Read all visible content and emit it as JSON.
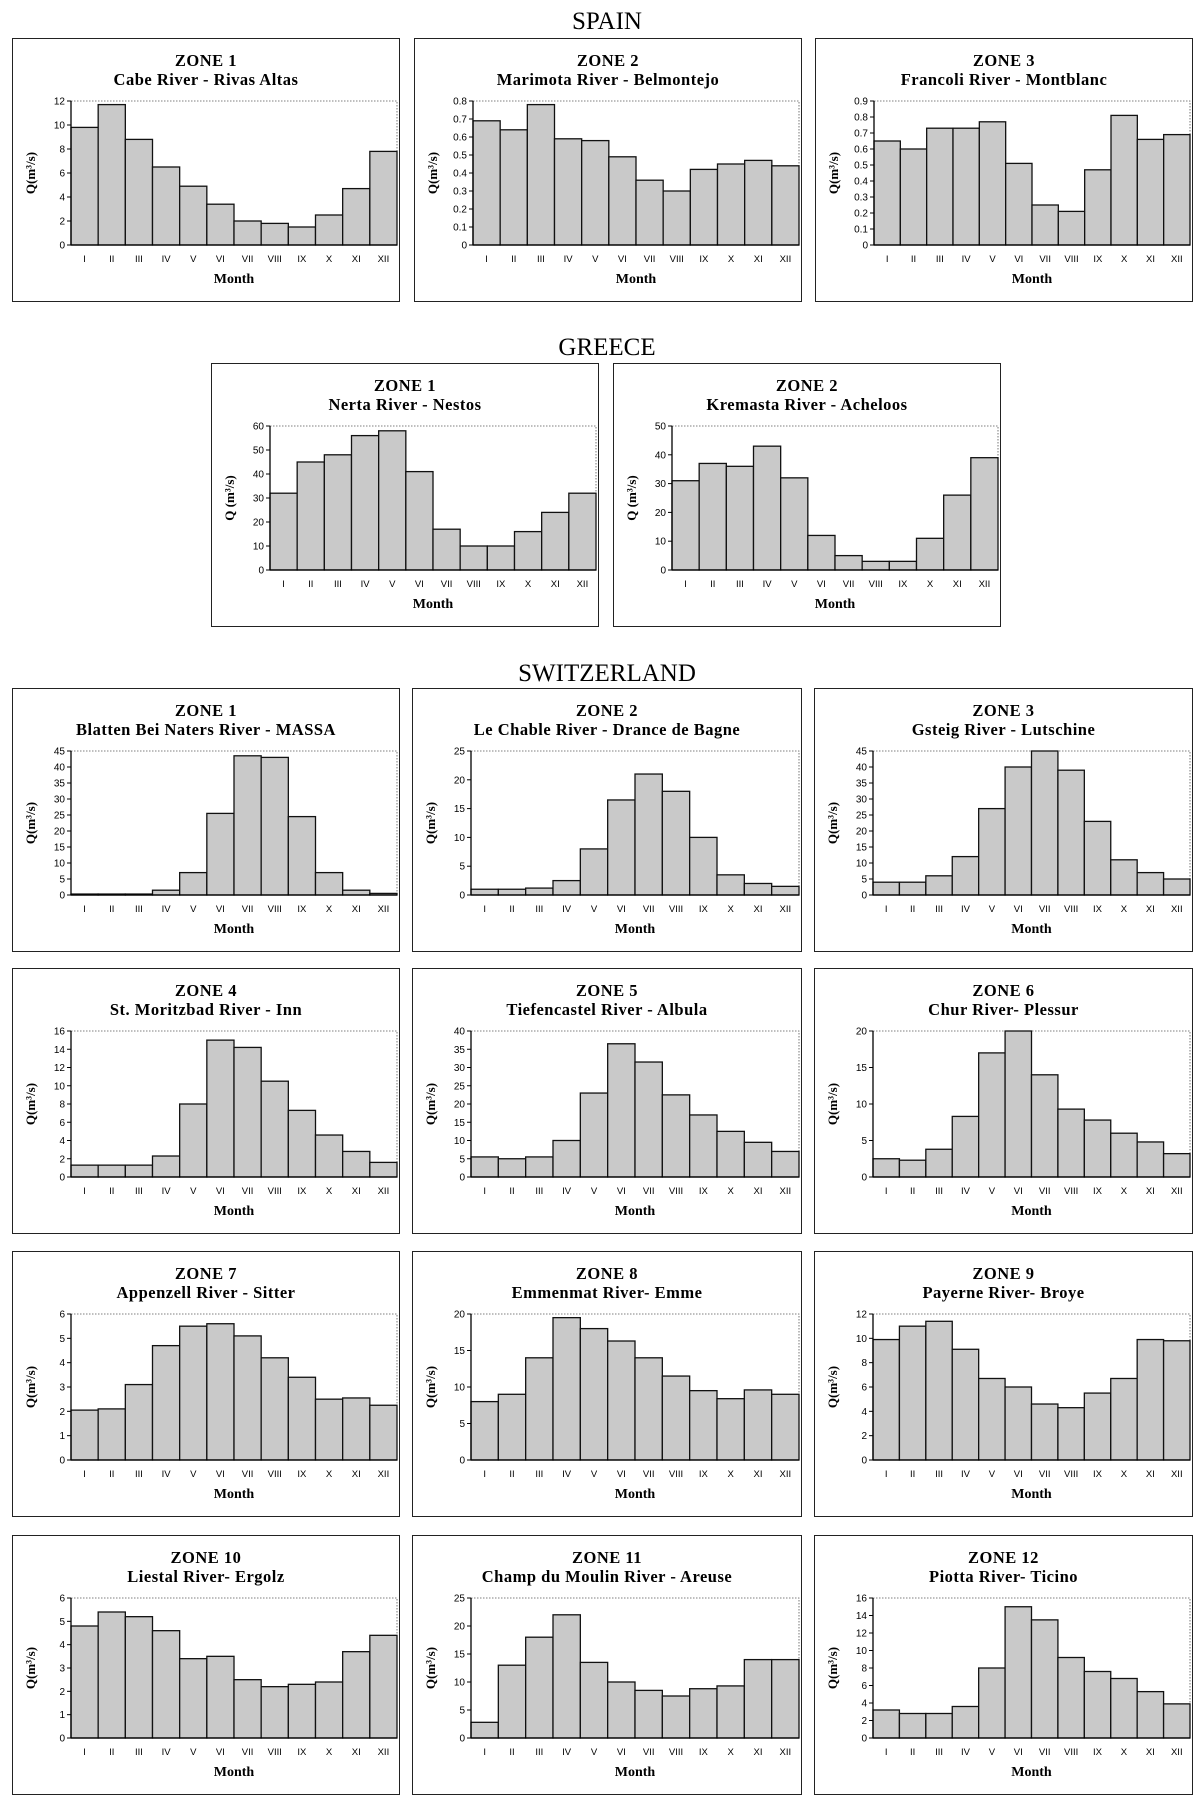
{
  "countries": [
    "SPAIN",
    "GREECE",
    "SWITZERLAND"
  ],
  "colors": {
    "bar_fill": "#c9c9c9",
    "bar_stroke": "#111111",
    "frame": "#222222"
  },
  "chart_data": [
    {
      "type": "bar",
      "country": "SPAIN",
      "title": "ZONE 1",
      "subtitle": "Cabe River - Rivas Altas",
      "xlabel": "Month",
      "ylabel": "Q(m³/s)",
      "ylim": [
        0,
        12
      ],
      "yticks": [
        0,
        2,
        4,
        6,
        8,
        10,
        12
      ],
      "categories": [
        "I",
        "II",
        "III",
        "IV",
        "V",
        "VI",
        "VII",
        "VIII",
        "IX",
        "X",
        "XI",
        "XII"
      ],
      "values": [
        9.8,
        11.7,
        8.8,
        6.5,
        4.9,
        3.4,
        2.0,
        1.8,
        1.5,
        2.5,
        4.7,
        7.8
      ]
    },
    {
      "type": "bar",
      "country": "SPAIN",
      "title": "ZONE 2",
      "subtitle": "Marimota River - Belmontejo",
      "xlabel": "Month",
      "ylabel": "Q(m³/s)",
      "ylim": [
        0,
        0.8
      ],
      "yticks": [
        0,
        0.1,
        0.2,
        0.3,
        0.4,
        0.5,
        0.6,
        0.7,
        0.8
      ],
      "categories": [
        "I",
        "II",
        "III",
        "IV",
        "V",
        "VI",
        "VII",
        "VIII",
        "IX",
        "X",
        "XI",
        "XII"
      ],
      "values": [
        0.69,
        0.64,
        0.78,
        0.59,
        0.58,
        0.49,
        0.36,
        0.3,
        0.42,
        0.45,
        0.47,
        0.44
      ]
    },
    {
      "type": "bar",
      "country": "SPAIN",
      "title": "ZONE 3",
      "subtitle": "Francoli River - Montblanc",
      "xlabel": "Month",
      "ylabel": "Q(m³/s)",
      "ylim": [
        0,
        0.9
      ],
      "yticks": [
        0,
        0.1,
        0.2,
        0.3,
        0.4,
        0.5,
        0.6,
        0.7,
        0.8,
        0.9
      ],
      "categories": [
        "I",
        "II",
        "III",
        "IV",
        "V",
        "VI",
        "VII",
        "VIII",
        "IX",
        "X",
        "XI",
        "XII"
      ],
      "values": [
        0.65,
        0.6,
        0.73,
        0.73,
        0.77,
        0.51,
        0.25,
        0.21,
        0.47,
        0.81,
        0.66,
        0.69
      ]
    },
    {
      "type": "bar",
      "country": "GREECE",
      "title": "ZONE 1",
      "subtitle": "Nerta River - Nestos",
      "xlabel": "Month",
      "ylabel": "Q (m³/s)",
      "ylim": [
        0,
        60
      ],
      "yticks": [
        0,
        10,
        20,
        30,
        40,
        50,
        60
      ],
      "categories": [
        "I",
        "II",
        "III",
        "IV",
        "V",
        "VI",
        "VII",
        "VIII",
        "IX",
        "X",
        "XI",
        "XII"
      ],
      "values": [
        32,
        45,
        48,
        56,
        58,
        41,
        17,
        10,
        10,
        16,
        24,
        32
      ]
    },
    {
      "type": "bar",
      "country": "GREECE",
      "title": "ZONE 2",
      "subtitle": "Kremasta River - Acheloos",
      "xlabel": "Month",
      "ylabel": "Q (m³/s)",
      "ylim": [
        0,
        50
      ],
      "yticks": [
        0,
        10,
        20,
        30,
        40,
        50
      ],
      "categories": [
        "I",
        "II",
        "III",
        "IV",
        "V",
        "VI",
        "VII",
        "VIII",
        "IX",
        "X",
        "XI",
        "XII"
      ],
      "values": [
        31,
        37,
        36,
        43,
        32,
        12,
        5,
        3,
        3,
        11,
        26,
        39
      ]
    },
    {
      "type": "bar",
      "country": "SWITZERLAND",
      "title": "ZONE 1",
      "subtitle": "Blatten Bei Naters River - MASSA",
      "xlabel": "Month",
      "ylabel": "Q(m³/s)",
      "ylim": [
        0,
        45
      ],
      "yticks": [
        0,
        5,
        10,
        15,
        20,
        25,
        30,
        35,
        40,
        45
      ],
      "categories": [
        "I",
        "II",
        "III",
        "IV",
        "V",
        "VI",
        "VII",
        "VIII",
        "IX",
        "X",
        "XI",
        "XII"
      ],
      "values": [
        0.3,
        0.3,
        0.3,
        1.5,
        7,
        25.5,
        43.5,
        43,
        24.5,
        7,
        1.5,
        0.5
      ]
    },
    {
      "type": "bar",
      "country": "SWITZERLAND",
      "title": "ZONE 2",
      "subtitle": "Le Chable River - Drance de Bagne",
      "xlabel": "Month",
      "ylabel": "Q(m³/s)",
      "ylim": [
        0,
        25
      ],
      "yticks": [
        0,
        5,
        10,
        15,
        20,
        25
      ],
      "categories": [
        "I",
        "II",
        "III",
        "IV",
        "V",
        "VI",
        "VII",
        "VIII",
        "IX",
        "X",
        "XI",
        "XII"
      ],
      "values": [
        1,
        1,
        1.2,
        2.5,
        8,
        16.5,
        21,
        18,
        10,
        3.5,
        2,
        1.5
      ]
    },
    {
      "type": "bar",
      "country": "SWITZERLAND",
      "title": "ZONE 3",
      "subtitle": "Gsteig River - Lutschine",
      "xlabel": "Month",
      "ylabel": "Q(m³/s)",
      "ylim": [
        0,
        45
      ],
      "yticks": [
        0,
        5,
        10,
        15,
        20,
        25,
        30,
        35,
        40,
        45
      ],
      "categories": [
        "I",
        "II",
        "III",
        "IV",
        "V",
        "VI",
        "VII",
        "VIII",
        "IX",
        "X",
        "XI",
        "XII"
      ],
      "values": [
        4,
        4,
        6,
        12,
        27,
        40,
        45,
        39,
        23,
        11,
        7,
        5
      ]
    },
    {
      "type": "bar",
      "country": "SWITZERLAND",
      "title": "ZONE 4",
      "subtitle": "St. Moritzbad River - Inn",
      "xlabel": "Month",
      "ylabel": "Q(m³/s)",
      "ylim": [
        0,
        16
      ],
      "yticks": [
        0,
        2,
        4,
        6,
        8,
        10,
        12,
        14,
        16
      ],
      "categories": [
        "I",
        "II",
        "III",
        "IV",
        "V",
        "VI",
        "VII",
        "VIII",
        "IX",
        "X",
        "XI",
        "XII"
      ],
      "values": [
        1.3,
        1.3,
        1.3,
        2.3,
        8,
        15,
        14.2,
        10.5,
        7.3,
        4.6,
        2.8,
        1.6
      ]
    },
    {
      "type": "bar",
      "country": "SWITZERLAND",
      "title": "ZONE 5",
      "subtitle": "Tiefencastel River - Albula",
      "xlabel": "Month",
      "ylabel": "Q(m³/s)",
      "ylim": [
        0,
        40
      ],
      "yticks": [
        0,
        5,
        10,
        15,
        20,
        25,
        30,
        35,
        40
      ],
      "categories": [
        "I",
        "II",
        "III",
        "IV",
        "V",
        "VI",
        "VII",
        "VIII",
        "IX",
        "X",
        "XI",
        "XII"
      ],
      "values": [
        5.5,
        5,
        5.5,
        10,
        23,
        36.5,
        31.5,
        22.5,
        17,
        12.5,
        9.5,
        7
      ]
    },
    {
      "type": "bar",
      "country": "SWITZERLAND",
      "title": "ZONE 6",
      "subtitle": "Chur River- Plessur",
      "xlabel": "Month",
      "ylabel": "Q(m³/s)",
      "ylim": [
        0,
        20
      ],
      "yticks": [
        0,
        5,
        10,
        15,
        20
      ],
      "categories": [
        "I",
        "II",
        "III",
        "IV",
        "V",
        "VI",
        "VII",
        "VIII",
        "IX",
        "X",
        "XI",
        "XII"
      ],
      "values": [
        2.5,
        2.3,
        3.8,
        8.3,
        17,
        20,
        14,
        9.3,
        7.8,
        6,
        4.8,
        3.2
      ]
    },
    {
      "type": "bar",
      "country": "SWITZERLAND",
      "title": "ZONE 7",
      "subtitle": "Appenzell River - Sitter",
      "xlabel": "Month",
      "ylabel": "Q(m³/s)",
      "ylim": [
        0,
        6
      ],
      "yticks": [
        0,
        1,
        2,
        3,
        4,
        5,
        6
      ],
      "categories": [
        "I",
        "II",
        "III",
        "IV",
        "V",
        "VI",
        "VII",
        "VIII",
        "IX",
        "X",
        "XI",
        "XII"
      ],
      "values": [
        2.05,
        2.1,
        3.1,
        4.7,
        5.5,
        5.6,
        5.1,
        4.2,
        3.4,
        2.5,
        2.55,
        2.25
      ]
    },
    {
      "type": "bar",
      "country": "SWITZERLAND",
      "title": "ZONE 8",
      "subtitle": "Emmenmat River- Emme",
      "xlabel": "Month",
      "ylabel": "Q(m³/s)",
      "ylim": [
        0,
        20
      ],
      "yticks": [
        0,
        5,
        10,
        15,
        20
      ],
      "categories": [
        "I",
        "II",
        "III",
        "IV",
        "V",
        "VI",
        "VII",
        "VIII",
        "IX",
        "X",
        "XI",
        "XII"
      ],
      "values": [
        8,
        9,
        14,
        19.5,
        18,
        16.3,
        14,
        11.5,
        9.5,
        8.4,
        9.6,
        9
      ]
    },
    {
      "type": "bar",
      "country": "SWITZERLAND",
      "title": "ZONE 9",
      "subtitle": "Payerne River- Broye",
      "xlabel": "Month",
      "ylabel": "Q(m³/s)",
      "ylim": [
        0,
        12
      ],
      "yticks": [
        0,
        2,
        4,
        6,
        8,
        10,
        12
      ],
      "categories": [
        "I",
        "II",
        "III",
        "IV",
        "V",
        "VI",
        "VII",
        "VIII",
        "IX",
        "X",
        "XI",
        "XII"
      ],
      "values": [
        9.9,
        11,
        11.4,
        9.1,
        6.7,
        6,
        4.6,
        4.3,
        5.5,
        6.7,
        9.9,
        9.8
      ]
    },
    {
      "type": "bar",
      "country": "SWITZERLAND",
      "title": "ZONE 10",
      "subtitle": "Liestal River- Ergolz",
      "xlabel": "Month",
      "ylabel": "Q(m³/s)",
      "ylim": [
        0,
        6
      ],
      "yticks": [
        0,
        1,
        2,
        3,
        4,
        5,
        6
      ],
      "categories": [
        "I",
        "II",
        "III",
        "IV",
        "V",
        "VI",
        "VII",
        "VIII",
        "IX",
        "X",
        "XI",
        "XII"
      ],
      "values": [
        4.8,
        5.4,
        5.2,
        4.6,
        3.4,
        3.5,
        2.5,
        2.2,
        2.3,
        2.4,
        3.7,
        4.4
      ]
    },
    {
      "type": "bar",
      "country": "SWITZERLAND",
      "title": "ZONE 11",
      "subtitle": "Champ du Moulin River - Areuse",
      "xlabel": "Month",
      "ylabel": "Q(m³/s)",
      "ylim": [
        0,
        25
      ],
      "yticks": [
        0,
        5,
        10,
        15,
        20,
        25
      ],
      "categories": [
        "I",
        "II",
        "III",
        "IV",
        "V",
        "VI",
        "VII",
        "VIII",
        "IX",
        "X",
        "XI",
        "XII"
      ],
      "values": [
        2.8,
        13,
        18,
        22,
        13.5,
        10,
        8.5,
        7.5,
        8.8,
        9.3,
        14,
        14
      ]
    },
    {
      "type": "bar",
      "country": "SWITZERLAND",
      "title": "ZONE 12",
      "subtitle": "Piotta River- Ticino",
      "xlabel": "Month",
      "ylabel": "Q(m³/s)",
      "ylim": [
        0,
        16
      ],
      "yticks": [
        0,
        2,
        4,
        6,
        8,
        10,
        12,
        14,
        16
      ],
      "categories": [
        "I",
        "II",
        "III",
        "IV",
        "V",
        "VI",
        "VII",
        "VIII",
        "IX",
        "X",
        "XI",
        "XII"
      ],
      "values": [
        3.2,
        2.8,
        2.8,
        3.6,
        8,
        15,
        13.5,
        9.2,
        7.6,
        6.8,
        5.3,
        3.9
      ]
    }
  ]
}
